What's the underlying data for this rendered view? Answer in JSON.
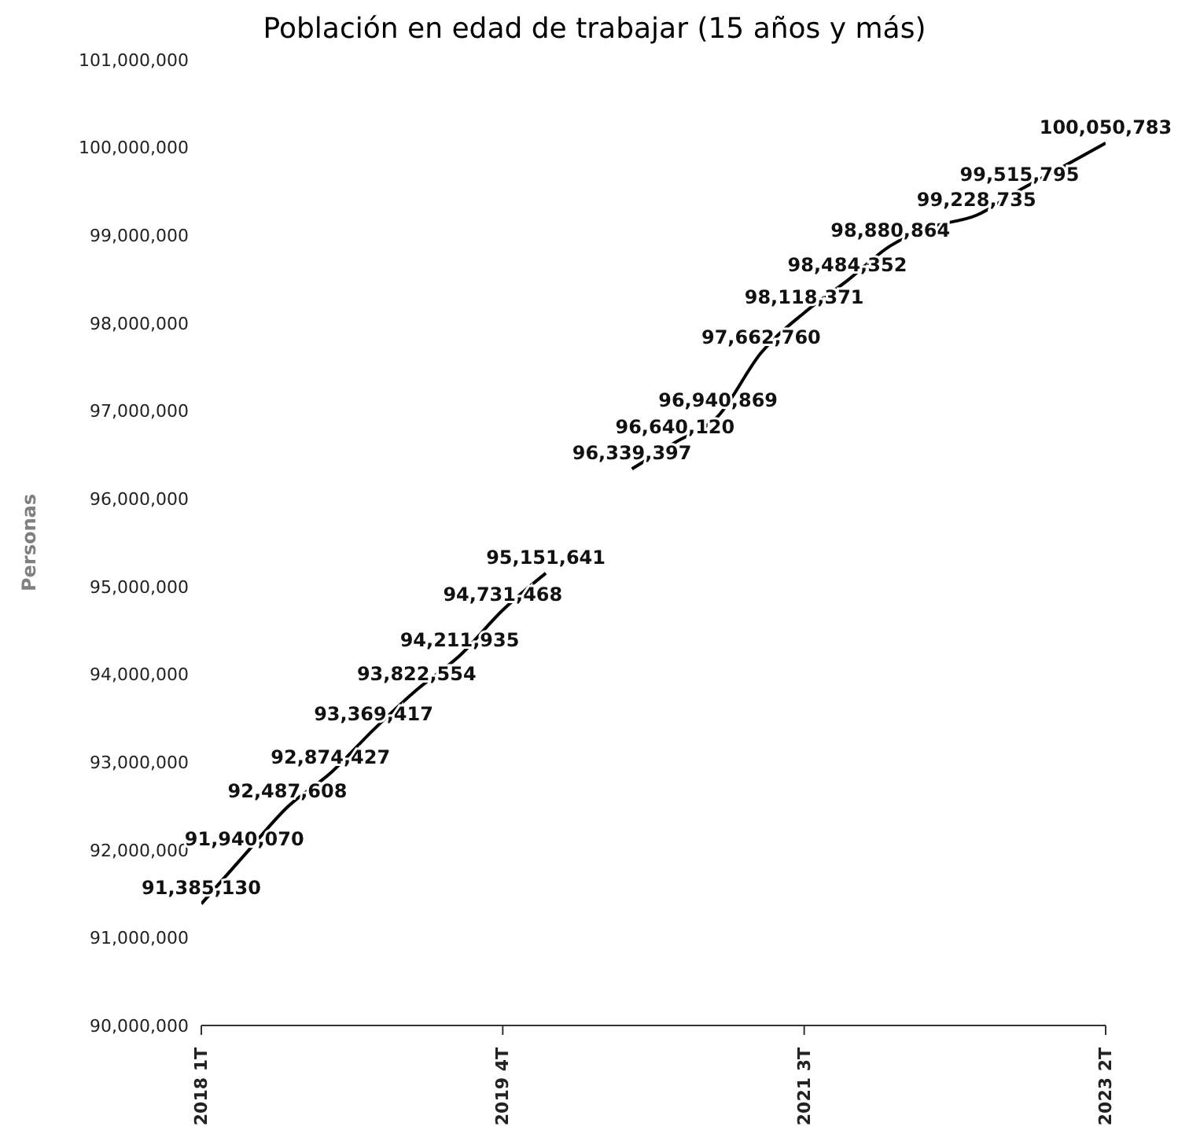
{
  "chart_data": {
    "type": "line",
    "title": "Población en edad de trabajar (15 años y más)",
    "ylabel": "Personas",
    "categories": [
      "2018 1T",
      null,
      null,
      null,
      null,
      null,
      null,
      "2019 4T",
      null,
      null,
      null,
      null,
      null,
      null,
      "2021 3T",
      null,
      null,
      null,
      null,
      null,
      null,
      "2023 2T"
    ],
    "series": [
      {
        "color": "#000000",
        "values": [
          91385130,
          91940070,
          92487608,
          92874427,
          93369417,
          93822554,
          94211935,
          94731468,
          95151641,
          null,
          96339397,
          96640120,
          96940869,
          97662760,
          98118371,
          98484352,
          98880864,
          99100000,
          99228735,
          99515795,
          99780000,
          100050783
        ],
        "value_labels": [
          "91,385,130",
          "91,940,070",
          "92,487,608",
          "92,874,427",
          "93,369,417",
          "93,822,554",
          "94,211,935",
          "94,731,468",
          "95,151,641",
          null,
          "96,339,397",
          "96,640,120",
          "96,940,869",
          "97,662,760",
          "98,118,371",
          "98,484,352",
          "98,880,864",
          null,
          "99,228,735",
          "99,515,795",
          null,
          "100,050,783"
        ]
      }
    ],
    "ylim": [
      90000000,
      101000000
    ],
    "yticks": [
      {
        "value": 90000000,
        "label": "90,000,000"
      },
      {
        "value": 91000000,
        "label": "91,000,000"
      },
      {
        "value": 92000000,
        "label": "92,000,000"
      },
      {
        "value": 93000000,
        "label": "93,000,000"
      },
      {
        "value": 94000000,
        "label": "94,000,000"
      },
      {
        "value": 95000000,
        "label": "95,000,000"
      },
      {
        "value": 96000000,
        "label": "96,000,000"
      },
      {
        "value": 97000000,
        "label": "97,000,000"
      },
      {
        "value": 98000000,
        "label": "98,000,000"
      },
      {
        "value": 99000000,
        "label": "99,000,000"
      },
      {
        "value": 100000000,
        "label": "100,000,000"
      },
      {
        "value": 101000000,
        "label": "101,000,000"
      }
    ],
    "grid": false,
    "legend": false,
    "marker": "none",
    "line_style": "solid"
  }
}
